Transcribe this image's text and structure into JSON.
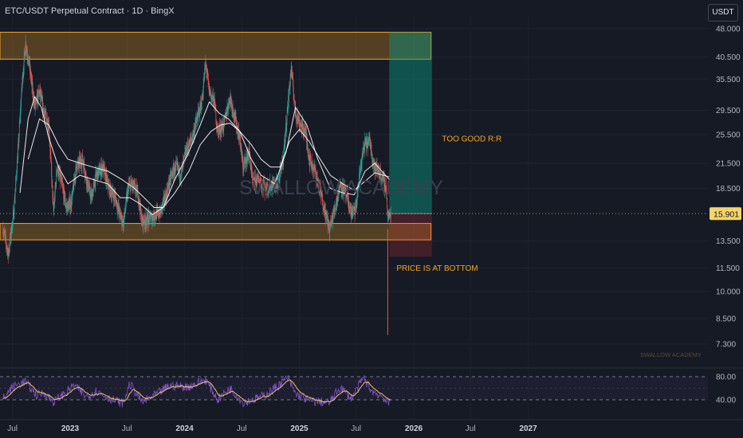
{
  "header": {
    "title": "ETC/USDT Perpetual Contract · 1D · BingX",
    "currency": "USDT"
  },
  "chart_data": {
    "type": "candlestick",
    "symbol": "ETC/USDT Perpetual Contract",
    "interval": "1D",
    "exchange": "BingX",
    "y_scale": "log",
    "y_ticks": [
      48,
      40.5,
      35.5,
      29.5,
      25.5,
      21.5,
      18.5,
      15.9,
      13.5,
      11.5,
      10,
      8.5,
      7.3
    ],
    "y_tick_labels": [
      "48.000",
      "40.500",
      "35.500",
      "29.500",
      "25.500",
      "21.500",
      "18.500",
      "15.901",
      "13.500",
      "11.500",
      "10.000",
      "8.500",
      "7.300"
    ],
    "last_price": 15.901,
    "last_price_label": "15.901",
    "x_ticks": [
      {
        "date": "2022-07-01",
        "label": "Jul",
        "year": false
      },
      {
        "date": "2023-01-01",
        "label": "2023",
        "year": true
      },
      {
        "date": "2023-07-01",
        "label": "Jul",
        "year": false
      },
      {
        "date": "2024-01-01",
        "label": "2024",
        "year": true
      },
      {
        "date": "2024-07-01",
        "label": "Jul",
        "year": false
      },
      {
        "date": "2025-01-01",
        "label": "2025",
        "year": true
      },
      {
        "date": "2025-07-01",
        "label": "Jul",
        "year": false
      },
      {
        "date": "2026-01-01",
        "label": "2026",
        "year": true
      },
      {
        "date": "2026-07-01",
        "label": "Jul",
        "year": false
      },
      {
        "date": "2027-01-01",
        "label": "2027",
        "year": true
      }
    ],
    "price_points": [
      [
        "2022-06-01",
        14.5
      ],
      [
        "2022-06-18",
        12.5
      ],
      [
        "2022-07-05",
        16
      ],
      [
        "2022-07-20",
        24
      ],
      [
        "2022-08-01",
        35
      ],
      [
        "2022-08-12",
        44
      ],
      [
        "2022-08-25",
        38
      ],
      [
        "2022-09-10",
        30
      ],
      [
        "2022-09-25",
        33
      ],
      [
        "2022-10-10",
        29
      ],
      [
        "2022-10-25",
        27
      ],
      [
        "2022-11-09",
        16
      ],
      [
        "2022-11-20",
        21
      ],
      [
        "2022-12-05",
        19
      ],
      [
        "2022-12-20",
        16.5
      ],
      [
        "2023-01-05",
        17
      ],
      [
        "2023-01-20",
        21
      ],
      [
        "2023-02-10",
        22
      ],
      [
        "2023-02-25",
        19
      ],
      [
        "2023-03-10",
        17.5
      ],
      [
        "2023-03-25",
        20
      ],
      [
        "2023-04-15",
        21
      ],
      [
        "2023-05-05",
        18.5
      ],
      [
        "2023-05-25",
        17.5
      ],
      [
        "2023-06-10",
        15.7
      ],
      [
        "2023-06-20",
        15
      ],
      [
        "2023-07-05",
        18.5
      ],
      [
        "2023-07-15",
        19
      ],
      [
        "2023-08-05",
        18
      ],
      [
        "2023-08-18",
        15.2
      ],
      [
        "2023-09-10",
        15.4
      ],
      [
        "2023-10-01",
        15.8
      ],
      [
        "2023-10-15",
        16
      ],
      [
        "2023-11-05",
        18
      ],
      [
        "2023-11-20",
        20
      ],
      [
        "2023-12-05",
        21
      ],
      [
        "2023-12-20",
        20
      ],
      [
        "2024-01-05",
        23
      ],
      [
        "2024-01-25",
        25
      ],
      [
        "2024-02-10",
        28
      ],
      [
        "2024-02-25",
        31
      ],
      [
        "2024-03-08",
        39
      ],
      [
        "2024-03-20",
        33
      ],
      [
        "2024-04-05",
        31
      ],
      [
        "2024-04-15",
        26
      ],
      [
        "2024-05-05",
        27
      ],
      [
        "2024-05-25",
        32
      ],
      [
        "2024-06-10",
        28
      ],
      [
        "2024-06-25",
        25
      ],
      [
        "2024-07-05",
        21
      ],
      [
        "2024-07-25",
        23
      ],
      [
        "2024-08-05",
        19
      ],
      [
        "2024-08-25",
        19.5
      ],
      [
        "2024-09-15",
        18.5
      ],
      [
        "2024-10-05",
        18.8
      ],
      [
        "2024-10-25",
        19
      ],
      [
        "2024-11-10",
        22
      ],
      [
        "2024-11-25",
        30
      ],
      [
        "2024-12-06",
        38
      ],
      [
        "2024-12-20",
        29
      ],
      [
        "2025-01-05",
        27
      ],
      [
        "2025-01-20",
        26
      ],
      [
        "2025-02-03",
        22
      ],
      [
        "2025-02-20",
        20.5
      ],
      [
        "2025-03-10",
        18
      ],
      [
        "2025-04-07",
        14.5
      ],
      [
        "2025-04-25",
        16.5
      ],
      [
        "2025-05-12",
        19
      ],
      [
        "2025-05-28",
        18
      ],
      [
        "2025-06-15",
        16
      ],
      [
        "2025-06-30",
        16.3
      ],
      [
        "2025-07-15",
        21
      ],
      [
        "2025-07-28",
        24
      ],
      [
        "2025-08-14",
        24.5
      ],
      [
        "2025-08-28",
        21
      ],
      [
        "2025-09-12",
        20.5
      ],
      [
        "2025-09-25",
        19.5
      ],
      [
        "2025-10-05",
        18.5
      ],
      [
        "2025-10-10",
        15.5
      ],
      [
        "2025-10-20",
        15.9
      ]
    ],
    "flash_wick": {
      "date": "2025-10-10",
      "low": 7.7
    },
    "ma_fast": [
      [
        "2022-07-25",
        18
      ],
      [
        "2022-08-20",
        28
      ],
      [
        "2022-09-10",
        32
      ],
      [
        "2022-10-01",
        30
      ],
      [
        "2022-10-25",
        25
      ],
      [
        "2022-11-25",
        21
      ],
      [
        "2022-12-25",
        19
      ],
      [
        "2023-02-01",
        20
      ],
      [
        "2023-03-15",
        19.5
      ],
      [
        "2023-05-01",
        19
      ],
      [
        "2023-06-10",
        17.5
      ],
      [
        "2023-07-10",
        17.5
      ],
      [
        "2023-08-15",
        16.8
      ],
      [
        "2023-09-20",
        15.8
      ],
      [
        "2023-10-25",
        16.5
      ],
      [
        "2023-12-01",
        19.5
      ],
      [
        "2024-01-15",
        23
      ],
      [
        "2024-02-20",
        27
      ],
      [
        "2024-03-20",
        31
      ],
      [
        "2024-04-20",
        29
      ],
      [
        "2024-05-20",
        28
      ],
      [
        "2024-06-25",
        26
      ],
      [
        "2024-08-01",
        22
      ],
      [
        "2024-09-01",
        20
      ],
      [
        "2024-10-15",
        19
      ],
      [
        "2024-11-20",
        23
      ],
      [
        "2024-12-20",
        30
      ],
      [
        "2025-01-25",
        27
      ],
      [
        "2025-03-01",
        22
      ],
      [
        "2025-04-10",
        18.5
      ],
      [
        "2025-05-20",
        18
      ],
      [
        "2025-06-25",
        17.8
      ],
      [
        "2025-07-30",
        20.5
      ],
      [
        "2025-08-30",
        21.5
      ],
      [
        "2025-10-15",
        19.5
      ]
    ],
    "ma_slow": [
      [
        "2022-08-20",
        22
      ],
      [
        "2022-09-25",
        28
      ],
      [
        "2022-10-25",
        27
      ],
      [
        "2022-11-25",
        24
      ],
      [
        "2022-12-25",
        22
      ],
      [
        "2023-02-01",
        21.5
      ],
      [
        "2023-03-15",
        21
      ],
      [
        "2023-05-01",
        20.5
      ],
      [
        "2023-06-15",
        19.5
      ],
      [
        "2023-07-25",
        18.5
      ],
      [
        "2023-08-25",
        17.5
      ],
      [
        "2023-09-25",
        16.5
      ],
      [
        "2023-10-25",
        16.5
      ],
      [
        "2023-12-01",
        18
      ],
      [
        "2024-01-15",
        20.5
      ],
      [
        "2024-02-20",
        24
      ],
      [
        "2024-03-25",
        26
      ],
      [
        "2024-04-25",
        27
      ],
      [
        "2024-05-25",
        27.3
      ],
      [
        "2024-06-25",
        26
      ],
      [
        "2024-08-01",
        24
      ],
      [
        "2024-09-01",
        22
      ],
      [
        "2024-10-01",
        21
      ],
      [
        "2024-11-01",
        21
      ],
      [
        "2024-12-01",
        24.5
      ],
      [
        "2025-01-01",
        26.3
      ],
      [
        "2025-02-01",
        24.5
      ],
      [
        "2025-03-01",
        22.5
      ],
      [
        "2025-04-10",
        20
      ],
      [
        "2025-05-20",
        19
      ],
      [
        "2025-06-25",
        18.3
      ],
      [
        "2025-07-30",
        19.3
      ],
      [
        "2025-08-30",
        20.3
      ],
      [
        "2025-10-15",
        19.8
      ]
    ],
    "rsi": {
      "ticks": [
        80,
        40
      ],
      "tick_labels": [
        "80.00",
        "40.00"
      ],
      "points": [
        [
          "2022-06-01",
          42
        ],
        [
          "2022-07-01",
          62
        ],
        [
          "2022-08-10",
          72
        ],
        [
          "2022-09-15",
          48
        ],
        [
          "2022-10-10",
          52
        ],
        [
          "2022-11-09",
          36
        ],
        [
          "2023-01-15",
          65
        ],
        [
          "2023-02-20",
          45
        ],
        [
          "2023-03-25",
          55
        ],
        [
          "2023-05-15",
          40
        ],
        [
          "2023-06-20",
          34
        ],
        [
          "2023-07-10",
          68
        ],
        [
          "2023-08-18",
          36
        ],
        [
          "2023-10-10",
          52
        ],
        [
          "2023-11-15",
          65
        ],
        [
          "2024-01-10",
          62
        ],
        [
          "2024-03-08",
          75
        ],
        [
          "2024-04-15",
          40
        ],
        [
          "2024-05-25",
          60
        ],
        [
          "2024-07-05",
          35
        ],
        [
          "2024-08-05",
          40
        ],
        [
          "2024-09-15",
          48
        ],
        [
          "2024-11-25",
          78
        ],
        [
          "2024-12-20",
          50
        ],
        [
          "2025-02-03",
          38
        ],
        [
          "2025-04-07",
          35
        ],
        [
          "2025-05-12",
          62
        ],
        [
          "2025-06-15",
          42
        ],
        [
          "2025-07-25",
          78
        ],
        [
          "2025-08-20",
          55
        ],
        [
          "2025-09-25",
          45
        ],
        [
          "2025-10-10",
          32
        ],
        [
          "2025-10-20",
          38
        ]
      ]
    },
    "zones": [
      {
        "name": "resistance-zone",
        "low": 40,
        "high": 47,
        "start": "2022-06-01",
        "end": "2026-02-25",
        "color": "#f5a623"
      },
      {
        "name": "support-zone",
        "low": 13.6,
        "high": 15.0,
        "start": "2022-06-01",
        "end": "2026-02-25",
        "color": "#f5a623"
      }
    ],
    "position": {
      "start": "2025-10-15",
      "end": "2026-02-28",
      "entry": 15.901,
      "target": 47,
      "stop": 12.3,
      "profit_color": "#089981",
      "loss_color": "#f23645"
    },
    "annotations": [
      {
        "text": "TOO GOOD R:R",
        "date": "2026-04-01",
        "price": 24.5
      },
      {
        "text": "PRICE IS AT BOTTOM",
        "date": "2025-11-07",
        "price": 11.3
      }
    ],
    "watermark": "SWALLOW ACADEMY",
    "brand": "SWALLOW ACADEMY",
    "colors": {
      "up": "#26a69a",
      "down": "#ef5350",
      "ma": "#ffffff",
      "rsi": "#7e57c2",
      "rsi_ma": "#e9c46a",
      "zone": "#f5a623",
      "last_price": "#f5d469"
    }
  }
}
